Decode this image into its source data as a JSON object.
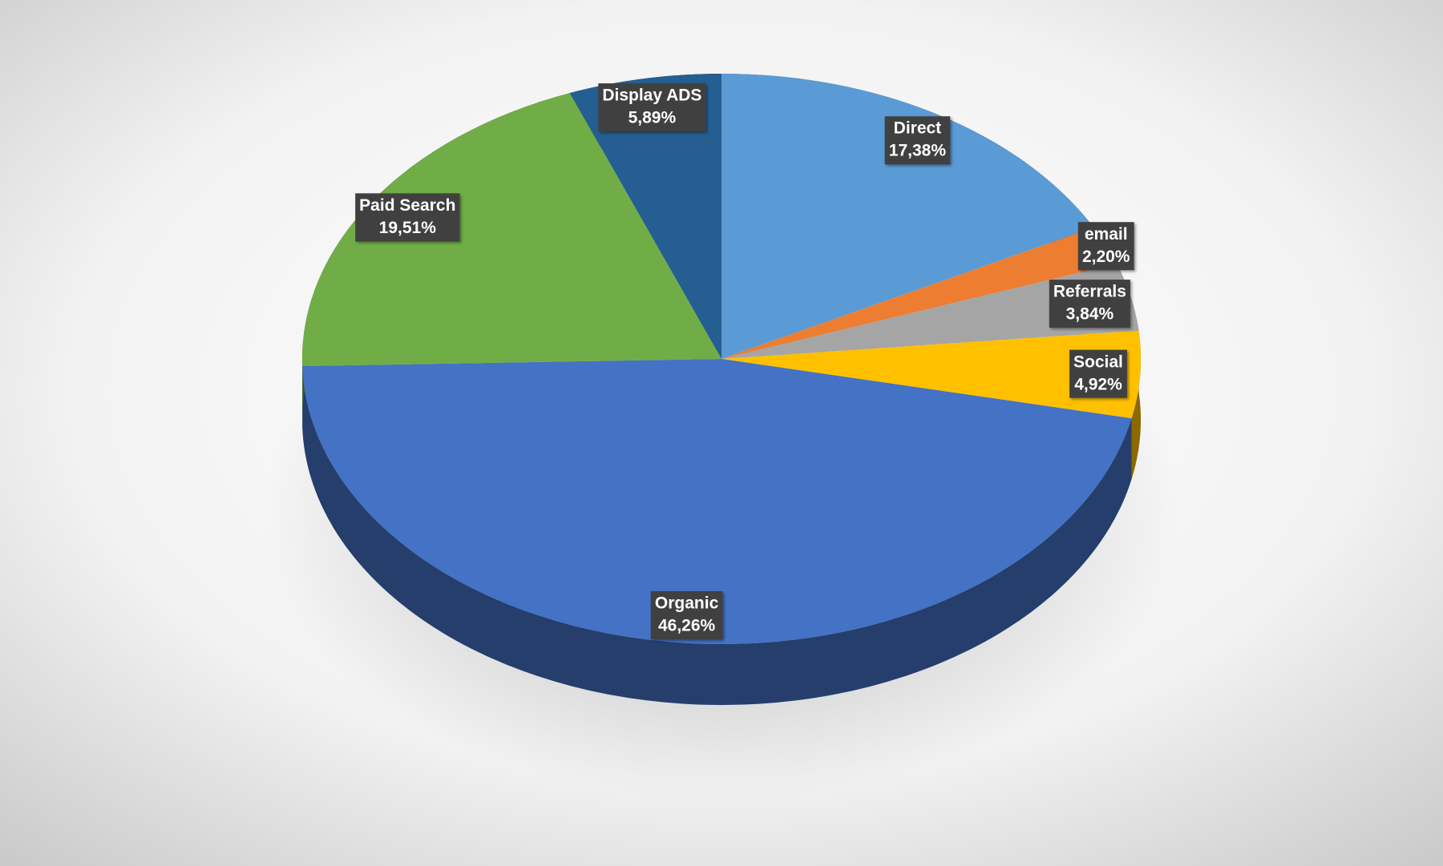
{
  "chart_data": {
    "type": "pie",
    "categories": [
      "Direct",
      "email",
      "Referrals",
      "Social",
      "Organic",
      "Paid Search",
      "Display ADS"
    ],
    "values": [
      17.38,
      2.2,
      3.84,
      4.92,
      46.26,
      19.51,
      5.89
    ],
    "value_labels": [
      "17,38%",
      "2,20%",
      "3,84%",
      "4,92%",
      "46,26%",
      "19,51%",
      "5,89%"
    ],
    "colors": [
      "#5b9bd5",
      "#ed7d31",
      "#a5a5a5",
      "#ffc000",
      "#4472c4",
      "#70ad47",
      "#255e91"
    ]
  }
}
